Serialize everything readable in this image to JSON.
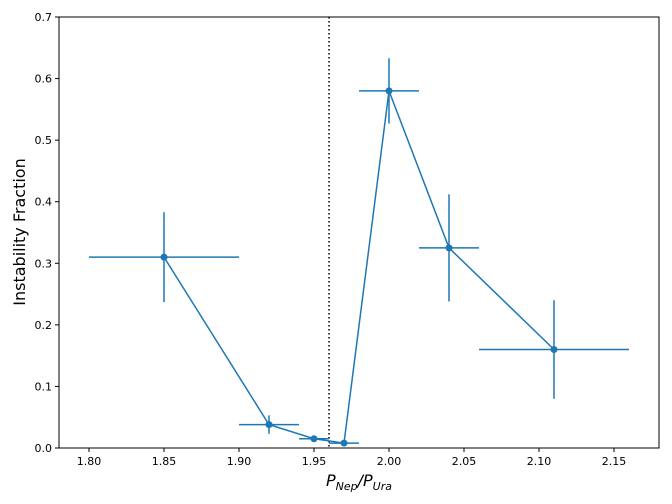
{
  "chart_data": {
    "type": "scatter",
    "title": "",
    "xlabel": {
      "main": "P",
      "sub1": "Nep",
      "slash": "/",
      "main2": "P",
      "sub2": "Ura"
    },
    "ylabel": "Instability Fraction",
    "xlim": [
      1.78,
      2.18
    ],
    "ylim": [
      0.0,
      0.7
    ],
    "xticks": [
      "1.80",
      "1.85",
      "1.90",
      "1.95",
      "2.00",
      "2.05",
      "2.10",
      "2.15"
    ],
    "yticks": [
      "0.0",
      "0.1",
      "0.2",
      "0.3",
      "0.4",
      "0.5",
      "0.6",
      "0.7"
    ],
    "grid": false,
    "series": [
      {
        "color": "#1f77b4",
        "points": [
          {
            "x": 1.85,
            "y": 0.31,
            "xerr": [
              0.05,
              0.05
            ],
            "yerr": [
              0.073,
              0.073
            ]
          },
          {
            "x": 1.92,
            "y": 0.038,
            "xerr": [
              0.02,
              0.02
            ],
            "yerr": [
              0.015,
              0.015
            ]
          },
          {
            "x": 1.95,
            "y": 0.015,
            "xerr": [
              0.01,
              0.01
            ],
            "yerr": [
              0.004,
              0.004
            ]
          },
          {
            "x": 1.97,
            "y": 0.008,
            "xerr": [
              0.01,
              0.01
            ],
            "yerr": [
              0.004,
              0.004
            ]
          },
          {
            "x": 2.0,
            "y": 0.58,
            "xerr": [
              0.02,
              0.02
            ],
            "yerr": [
              0.053,
              0.053
            ]
          },
          {
            "x": 2.04,
            "y": 0.325,
            "xerr": [
              0.02,
              0.02
            ],
            "yerr": [
              0.087,
              0.087
            ]
          },
          {
            "x": 2.11,
            "y": 0.16,
            "xerr": [
              0.05,
              0.05
            ],
            "yerr": [
              0.08,
              0.08
            ]
          }
        ]
      }
    ],
    "vline": {
      "x": 1.96,
      "style": "dotted",
      "color": "#000000"
    }
  }
}
